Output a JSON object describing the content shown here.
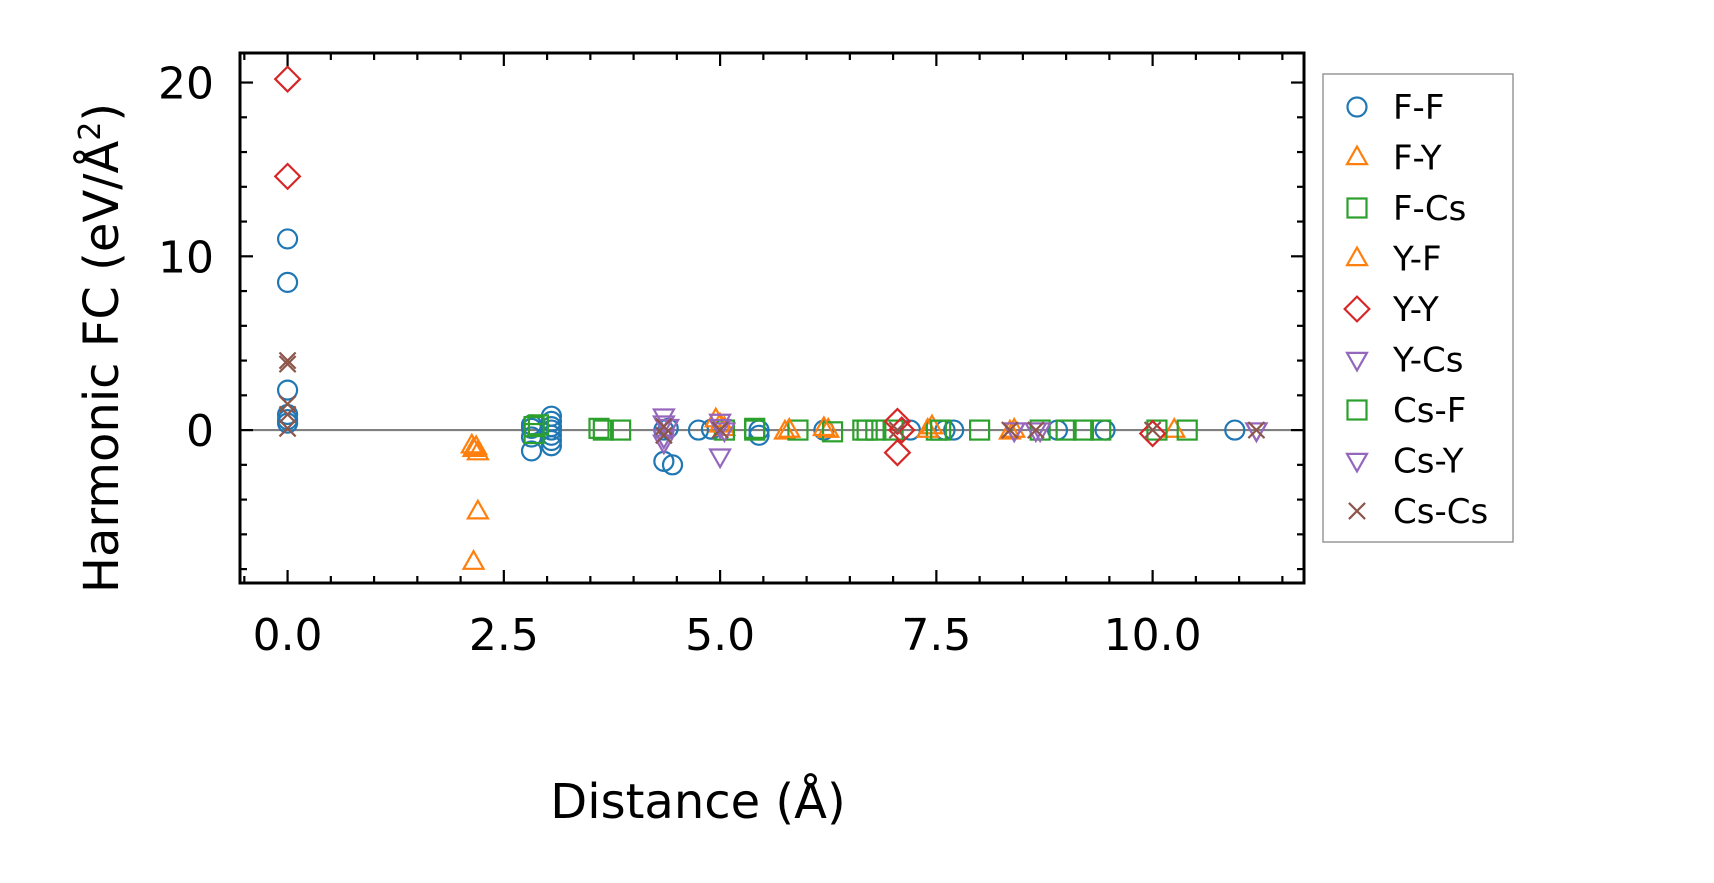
{
  "chart_data": {
    "type": "scatter",
    "xlabel": "Distance (Å)",
    "ylabel": "Harmonic FC (eV/Å",
    "ylabel_sup": "2",
    "ylabel_close": ")",
    "xlim": [
      -0.55,
      11.75
    ],
    "ylim": [
      -8.8,
      21.7
    ],
    "x_ticks": [
      {
        "value": 0.0,
        "label": "0.0"
      },
      {
        "value": 2.5,
        "label": "2.5"
      },
      {
        "value": 5.0,
        "label": "5.0"
      },
      {
        "value": 7.5,
        "label": "7.5"
      },
      {
        "value": 10.0,
        "label": "10.0"
      }
    ],
    "y_ticks": [
      {
        "value": 0,
        "label": "0"
      },
      {
        "value": 10,
        "label": "10"
      },
      {
        "value": 20,
        "label": "20"
      }
    ],
    "x_minor_step": 0.5,
    "y_minor_step": 2,
    "zero_line": true,
    "legend_position": "outside-right",
    "series": [
      {
        "name": "F-F",
        "marker": "circle",
        "color": "#1f77b4",
        "points": [
          [
            0,
            11.0
          ],
          [
            0,
            8.5
          ],
          [
            0,
            2.3
          ],
          [
            0,
            0.9
          ],
          [
            0,
            0.6
          ],
          [
            0,
            0.4
          ],
          [
            2.82,
            -1.2
          ],
          [
            2.82,
            -0.4
          ],
          [
            2.82,
            0.1
          ],
          [
            2.82,
            0.3
          ],
          [
            3.05,
            0.8
          ],
          [
            3.05,
            0.5
          ],
          [
            3.05,
            0.2
          ],
          [
            3.05,
            0.0
          ],
          [
            3.05,
            -0.3
          ],
          [
            3.05,
            -0.6
          ],
          [
            3.05,
            -0.9
          ],
          [
            4.35,
            -1.8
          ],
          [
            4.45,
            -2.0
          ],
          [
            4.35,
            0.0
          ],
          [
            4.4,
            0.1
          ],
          [
            4.75,
            0.0
          ],
          [
            4.9,
            0.05
          ],
          [
            5.45,
            0.0
          ],
          [
            5.45,
            -0.3
          ],
          [
            6.2,
            0.0
          ],
          [
            7.2,
            0.0
          ],
          [
            7.6,
            0.0
          ],
          [
            7.7,
            0.0
          ],
          [
            8.9,
            0.0
          ],
          [
            9.45,
            0.0
          ],
          [
            10.95,
            0.0
          ]
        ]
      },
      {
        "name": "F-Y",
        "marker": "triangle-up",
        "color": "#ff7f0e",
        "points": [
          [
            2.13,
            -0.9
          ],
          [
            2.15,
            -1.1
          ],
          [
            2.2,
            -1.3
          ],
          [
            2.2,
            -4.7
          ],
          [
            2.15,
            -7.6
          ],
          [
            4.95,
            0.6
          ],
          [
            5.05,
            0.1
          ],
          [
            5.75,
            -0.1
          ],
          [
            6.25,
            0.0
          ],
          [
            7.45,
            0.2
          ],
          [
            8.35,
            -0.1
          ],
          [
            10.25,
            0.0
          ]
        ]
      },
      {
        "name": "F-Cs",
        "marker": "square",
        "color": "#2ca02c",
        "points": [
          [
            2.85,
            0.2
          ],
          [
            2.9,
            0.3
          ],
          [
            3.6,
            0.1
          ],
          [
            3.85,
            0.0
          ],
          [
            5.05,
            0.0
          ],
          [
            5.4,
            0.1
          ],
          [
            5.9,
            0.0
          ],
          [
            6.3,
            -0.1
          ],
          [
            6.65,
            0.0
          ],
          [
            6.8,
            0.0
          ],
          [
            7.0,
            0.0
          ],
          [
            7.5,
            0.0
          ],
          [
            8.0,
            0.0
          ],
          [
            8.7,
            0.0
          ],
          [
            9.2,
            0.0
          ],
          [
            9.4,
            0.0
          ],
          [
            10.05,
            0.0
          ],
          [
            10.4,
            0.0
          ]
        ]
      },
      {
        "name": "Y-F",
        "marker": "triangle-up",
        "color": "#ff7f0e",
        "points": [
          [
            2.18,
            -1.0
          ],
          [
            5.0,
            0.3
          ],
          [
            5.8,
            0.0
          ],
          [
            6.2,
            0.1
          ],
          [
            7.4,
            0.0
          ],
          [
            8.4,
            0.0
          ]
        ]
      },
      {
        "name": "Y-Y",
        "marker": "diamond",
        "color": "#d62728",
        "points": [
          [
            0,
            20.2
          ],
          [
            0,
            14.6
          ],
          [
            7.05,
            -1.3
          ],
          [
            7.05,
            0.5
          ],
          [
            7.1,
            0.0
          ],
          [
            10.0,
            -0.2
          ]
        ]
      },
      {
        "name": "Y-Cs",
        "marker": "triangle-down",
        "color": "#9467bd",
        "points": [
          [
            4.35,
            0.8
          ],
          [
            4.35,
            0.4
          ],
          [
            4.35,
            -0.4
          ],
          [
            5.0,
            -1.5
          ],
          [
            5.0,
            0.5
          ],
          [
            5.05,
            0.0
          ],
          [
            8.4,
            0.0
          ],
          [
            8.65,
            0.0
          ],
          [
            11.2,
            0.0
          ]
        ]
      },
      {
        "name": "Cs-F",
        "marker": "square",
        "color": "#2ca02c",
        "points": [
          [
            2.85,
            -0.2
          ],
          [
            3.65,
            0.0
          ],
          [
            5.4,
            0.0
          ],
          [
            6.7,
            0.0
          ],
          [
            7.55,
            0.0
          ],
          [
            9.0,
            0.0
          ]
        ]
      },
      {
        "name": "Cs-Y",
        "marker": "triangle-down",
        "color": "#9467bd",
        "points": [
          [
            4.35,
            -0.7
          ],
          [
            4.4,
            0.2
          ],
          [
            5.0,
            0.2
          ],
          [
            8.4,
            0.0
          ],
          [
            8.7,
            0.0
          ],
          [
            11.2,
            0.0
          ]
        ]
      },
      {
        "name": "Cs-Cs",
        "marker": "x",
        "color": "#8c564b",
        "points": [
          [
            0,
            4.0
          ],
          [
            0,
            3.8
          ],
          [
            0,
            1.5
          ],
          [
            0,
            0.9
          ],
          [
            0,
            0.1
          ],
          [
            4.35,
            0.2
          ],
          [
            4.35,
            -0.3
          ],
          [
            5.0,
            0.0
          ],
          [
            7.05,
            0.0
          ],
          [
            8.35,
            0.0
          ],
          [
            8.65,
            0.0
          ],
          [
            10.0,
            0.0
          ],
          [
            11.2,
            0.0
          ]
        ]
      }
    ]
  }
}
